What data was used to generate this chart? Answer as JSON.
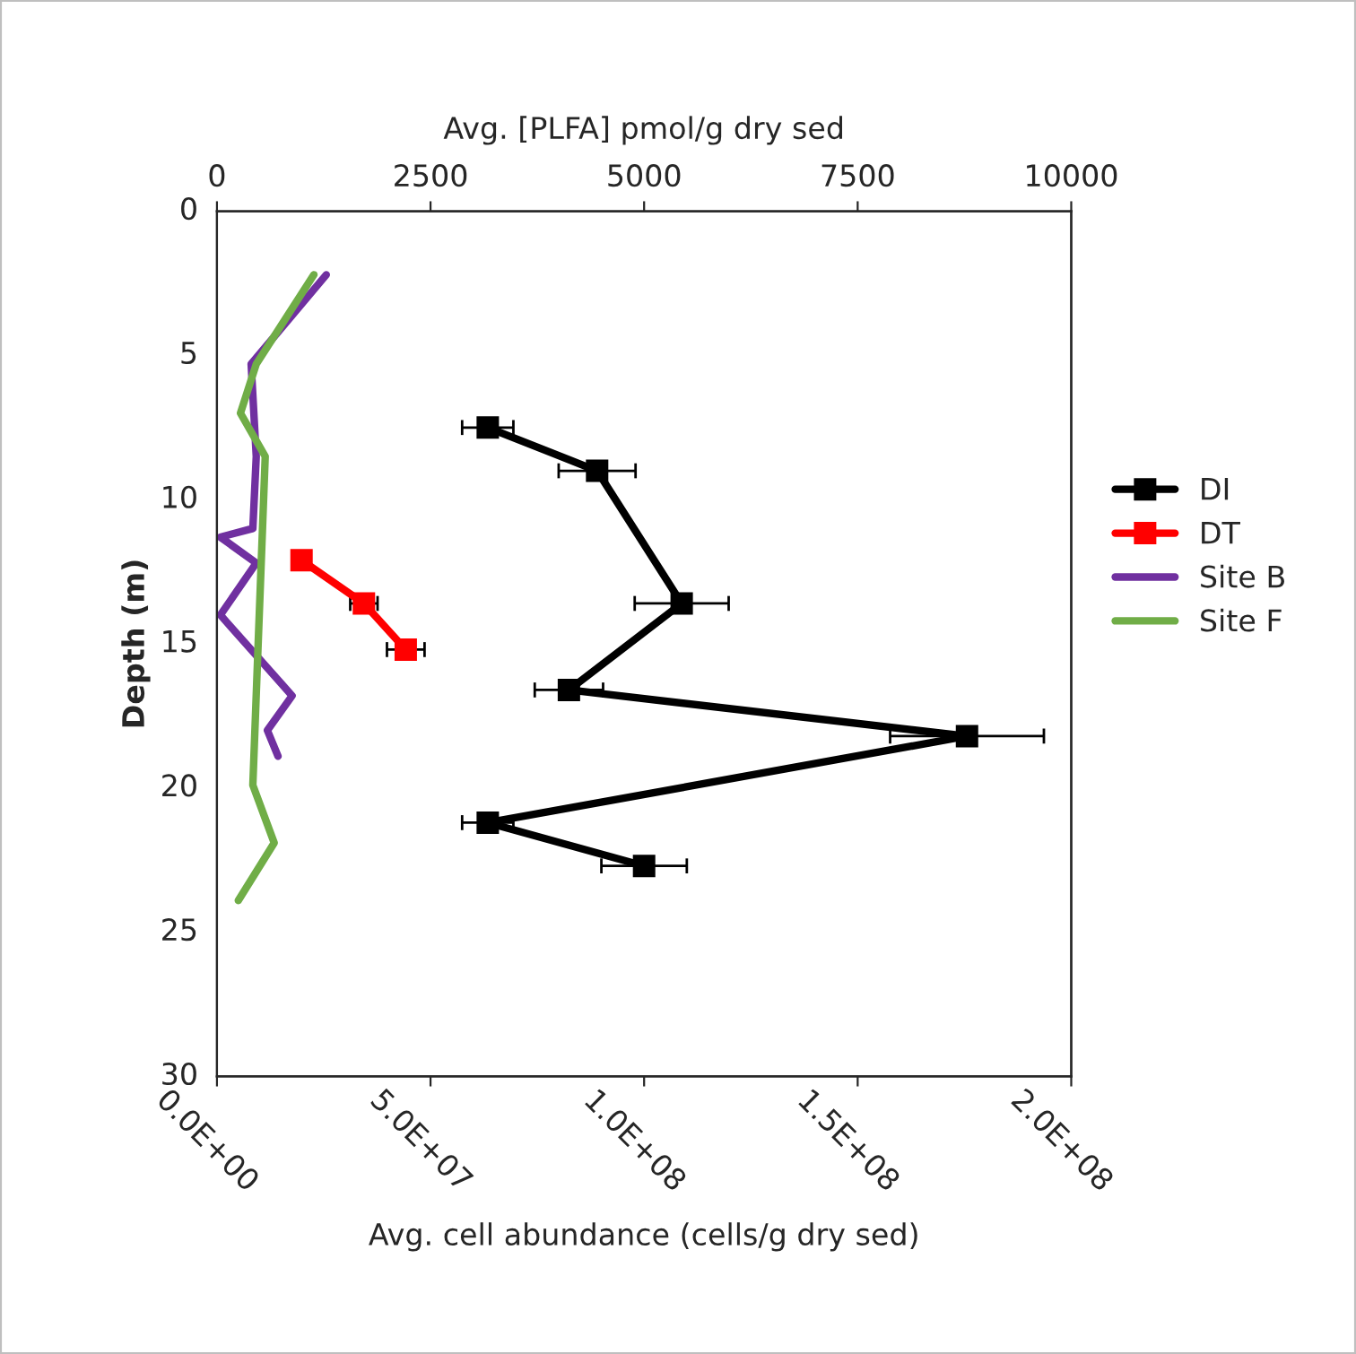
{
  "chart_data": {
    "type": "line",
    "xlabel": "Avg. cell abundance (cells/g dry sed)",
    "x2label": "Avg. [PLFA] pmol/g dry sed",
    "ylabel": "Depth (m)",
    "xlim": [
      0,
      200000000
    ],
    "xticks": [
      {
        "value": 0,
        "label": "0.0E+00"
      },
      {
        "value": 50000000,
        "label": "5.0E+07"
      },
      {
        "value": 100000000,
        "label": "1.0E+08"
      },
      {
        "value": 150000000,
        "label": "1.5E+08"
      },
      {
        "value": 200000000,
        "label": "2.0E+08"
      }
    ],
    "x2lim": [
      0,
      10000
    ],
    "x2ticks": [
      0,
      2500,
      5000,
      7500,
      10000
    ],
    "ylim": [
      30,
      0
    ],
    "yticks": [
      0,
      5,
      10,
      15,
      20,
      25,
      30
    ],
    "legend": "right",
    "grid": false,
    "line_style": "solid",
    "series": [
      {
        "name": "DI",
        "color": "#000000",
        "axis": "x2",
        "marker": "square",
        "x": [
          3170,
          4450,
          5440,
          4120,
          8780,
          3170,
          5000
        ],
        "values": [
          7.5,
          9.0,
          13.6,
          16.6,
          18.2,
          21.2,
          22.7
        ],
        "xerrors": [
          300,
          450,
          550,
          400,
          900,
          300,
          500
        ]
      },
      {
        "name": "DT",
        "color": "#ff0000",
        "axis": "x2",
        "marker": "square",
        "x": [
          990,
          1720,
          2210
        ],
        "values": [
          12.1,
          13.6,
          15.2
        ],
        "xerrors": [
          null,
          160,
          220
        ]
      },
      {
        "name": "Site B",
        "color": "#7030a0",
        "marker": "none",
        "x": [
          25600000,
          8000000,
          9200000,
          8400000,
          800000,
          9200000,
          800000,
          17600000,
          11800000,
          14300000
        ],
        "values": [
          2.2,
          5.3,
          8.5,
          11.0,
          11.3,
          12.2,
          14.0,
          16.8,
          18.0,
          18.9
        ]
      },
      {
        "name": "Site F",
        "color": "#70ad47",
        "marker": "none",
        "x": [
          22700000,
          9200000,
          5500000,
          11300000,
          8400000,
          13400000,
          5000000
        ],
        "values": [
          2.2,
          5.3,
          7.0,
          8.5,
          19.9,
          21.9,
          23.9
        ]
      }
    ]
  }
}
